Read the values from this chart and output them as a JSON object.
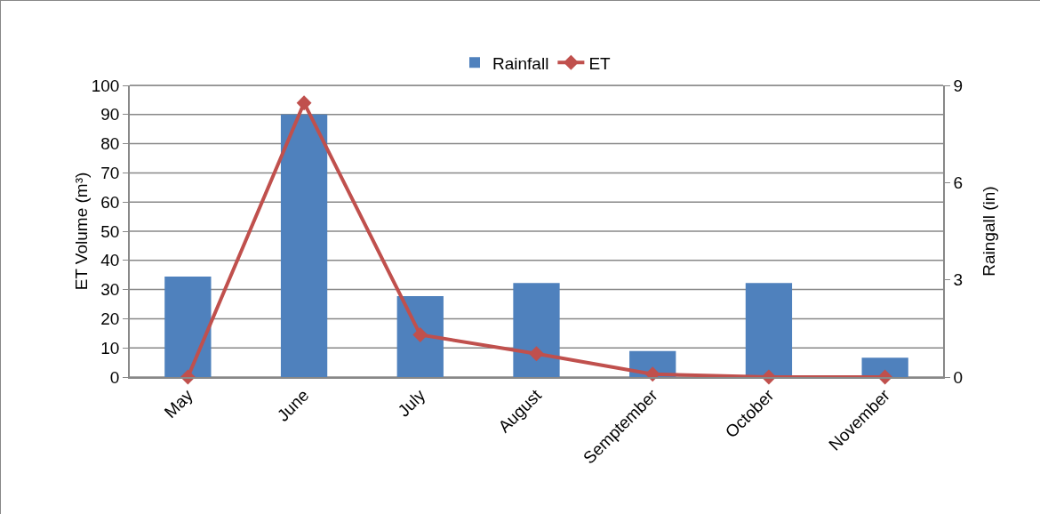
{
  "chart_data": {
    "type": "bar",
    "categories": [
      "May",
      "June",
      "July",
      "August",
      "Semptember",
      "October",
      "November"
    ],
    "series": [
      {
        "name": "Rainfall",
        "axis": "y2",
        "color": "#4f81bd",
        "values": [
          3.1,
          8.1,
          2.5,
          2.9,
          0.8,
          2.9,
          0.6
        ]
      },
      {
        "name": "ET",
        "type": "line",
        "axis": "y",
        "color": "#c0504d",
        "marker": "diamond",
        "values": [
          0,
          94,
          14.5,
          8,
          1,
          0,
          0
        ]
      }
    ],
    "ylabel": "ET Volume (m³)",
    "y2label": "Raingall (in)",
    "ylim": [
      0,
      100
    ],
    "yticks": [
      0,
      10,
      20,
      30,
      40,
      50,
      60,
      70,
      80,
      90,
      100
    ],
    "y2lim": [
      0,
      9
    ],
    "y2ticks": [
      0,
      3,
      6,
      9
    ],
    "grid": "y",
    "legend": "top"
  }
}
